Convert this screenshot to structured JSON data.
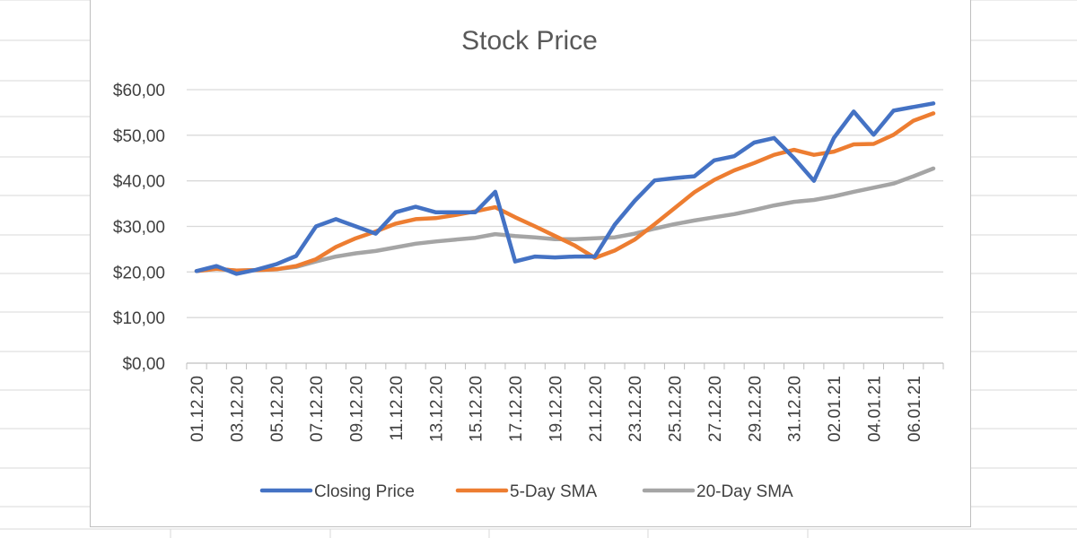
{
  "chart_data": {
    "type": "line",
    "title": "Stock Price",
    "xlabel": "",
    "ylabel": "",
    "ylim": [
      0,
      60
    ],
    "y_ticks": [
      "$0,00",
      "$10,00",
      "$20,00",
      "$30,00",
      "$40,00",
      "$50,00",
      "$60,00"
    ],
    "x_tick_labels": [
      "01.12.20",
      "03.12.20",
      "05.12.20",
      "07.12.20",
      "09.12.20",
      "11.12.20",
      "13.12.20",
      "15.12.20",
      "17.12.20",
      "19.12.20",
      "21.12.20",
      "23.12.20",
      "25.12.20",
      "27.12.20",
      "29.12.20",
      "31.12.20",
      "02.01.21",
      "04.01.21",
      "06.01.21"
    ],
    "x": [
      "01.12.20",
      "02.12.20",
      "03.12.20",
      "04.12.20",
      "05.12.20",
      "06.12.20",
      "07.12.20",
      "08.12.20",
      "09.12.20",
      "10.12.20",
      "11.12.20",
      "12.12.20",
      "13.12.20",
      "14.12.20",
      "15.12.20",
      "16.12.20",
      "17.12.20",
      "18.12.20",
      "19.12.20",
      "20.12.20",
      "21.12.20",
      "22.12.20",
      "23.12.20",
      "24.12.20",
      "25.12.20",
      "26.12.20",
      "27.12.20",
      "28.12.20",
      "29.12.20",
      "30.12.20",
      "31.12.20",
      "01.01.21",
      "02.01.21",
      "03.01.21",
      "04.01.21",
      "05.01.21",
      "06.01.21",
      "07.01.21"
    ],
    "series": [
      {
        "name": "Closing Price",
        "color": "#4472C4",
        "values": [
          20.2,
          21.3,
          19.6,
          20.5,
          21.7,
          23.5,
          30.0,
          31.6,
          30.0,
          28.4,
          33.1,
          34.3,
          33.1,
          33.1,
          33.1,
          37.6,
          22.3,
          23.4,
          23.2,
          23.4,
          23.4,
          30.4,
          35.6,
          40.1,
          40.6,
          41.0,
          44.5,
          45.4,
          48.4,
          49.4,
          45.0,
          40.0,
          49.4,
          55.2,
          50.1,
          55.4,
          56.2,
          57.0
        ]
      },
      {
        "name": "5-Day SMA",
        "color": "#ED7D31",
        "values": [
          20.2,
          20.7,
          20.3,
          20.4,
          20.6,
          21.3,
          22.8,
          25.5,
          27.4,
          28.9,
          30.6,
          31.6,
          31.8,
          32.5,
          33.3,
          34.2,
          32.0,
          30.0,
          27.9,
          25.8,
          23.1,
          24.7,
          27.1,
          30.5,
          34.0,
          37.5,
          40.2,
          42.3,
          43.9,
          45.7,
          46.8,
          45.7,
          46.4,
          48.0,
          48.1,
          50.1,
          53.2,
          54.8
        ]
      },
      {
        "name": "20-Day SMA",
        "color": "#A5A5A5",
        "values": [
          20.2,
          20.7,
          20.3,
          20.4,
          20.6,
          21.1,
          22.3,
          23.4,
          24.1,
          24.6,
          25.4,
          26.2,
          26.7,
          27.1,
          27.5,
          28.3,
          27.9,
          27.6,
          27.2,
          27.2,
          27.4,
          27.6,
          28.4,
          29.5,
          30.5,
          31.3,
          32.0,
          32.7,
          33.6,
          34.6,
          35.4,
          35.8,
          36.6,
          37.6,
          38.5,
          39.4,
          41.0,
          42.7
        ]
      }
    ],
    "grid": true,
    "legend_position": "bottom"
  }
}
